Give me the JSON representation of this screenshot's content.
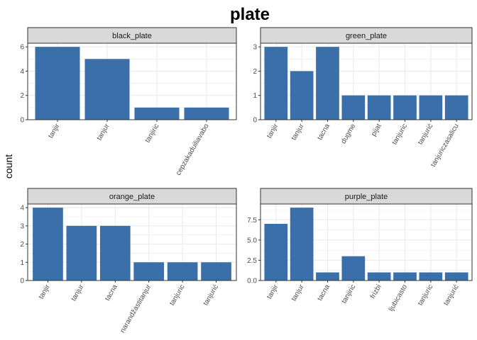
{
  "chart_data": {
    "type": "bar",
    "title": "plate",
    "ylabel": "count",
    "xlabel": "",
    "bar_color": "#3A6FAA",
    "strip_color": "#D9D9D9",
    "grid": true,
    "panels": [
      {
        "name": "black_plate",
        "categories": [
          "tanjir",
          "tanjur",
          "tanjiric",
          "cepzakaduiliavabo"
        ],
        "values": [
          6,
          5,
          1,
          1
        ],
        "ylim": [
          0,
          6.3
        ],
        "yticks": [
          0,
          2,
          4,
          6
        ],
        "ytick_labels": [
          "0",
          "2",
          "4",
          "6"
        ]
      },
      {
        "name": "green_plate",
        "categories": [
          "tanjir",
          "tanjur",
          "tacna",
          "dugme",
          "pijat",
          "tanjuric",
          "tanjurić",
          "tanjuriczasalicu"
        ],
        "values": [
          3,
          2,
          3,
          1,
          1,
          1,
          1,
          1
        ],
        "ylim": [
          0,
          3.15
        ],
        "yticks": [
          0,
          1,
          2,
          3
        ],
        "ytick_labels": [
          "0",
          "1",
          "2",
          "3"
        ]
      },
      {
        "name": "orange_plate",
        "categories": [
          "tanjir",
          "tanjur",
          "tacna",
          "narandžastitanjur",
          "tanjuric",
          "tanjurić"
        ],
        "values": [
          4,
          3,
          3,
          1,
          1,
          1
        ],
        "ylim": [
          0,
          4.2
        ],
        "yticks": [
          0,
          1,
          2,
          3,
          4
        ],
        "ytick_labels": [
          "0",
          "1",
          "2",
          "3",
          "4"
        ]
      },
      {
        "name": "purple_plate",
        "categories": [
          "tanjir",
          "tanjur",
          "tacna",
          "tanjiric",
          "frizbi",
          "ljubicasto",
          "tanjuric",
          "tanjurić"
        ],
        "values": [
          7,
          9,
          1,
          3,
          1,
          1,
          1,
          1
        ],
        "ylim": [
          0,
          9.45
        ],
        "yticks": [
          0,
          2.5,
          5,
          7.5
        ],
        "ytick_labels": [
          "0.0",
          "2.5",
          "5.0",
          "7.5"
        ]
      }
    ]
  }
}
